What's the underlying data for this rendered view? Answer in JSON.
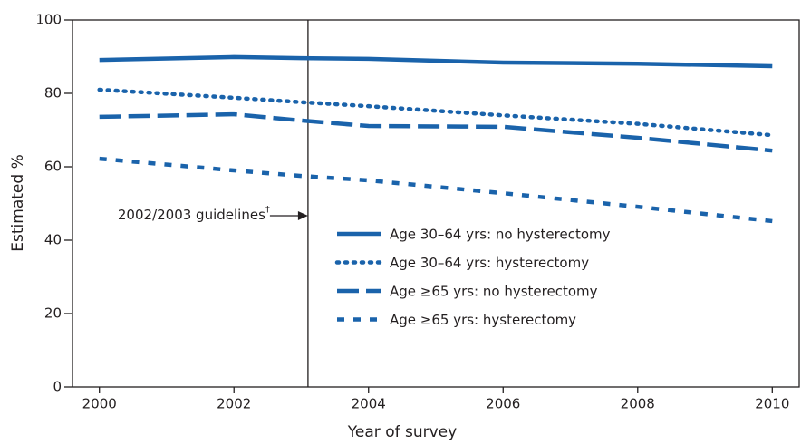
{
  "chart_data": {
    "type": "line",
    "x_label": "Year of survey",
    "y_label": "Estimated %",
    "x": [
      2000,
      2002,
      2003,
      2004,
      2006,
      2008,
      2010
    ],
    "series": [
      {
        "name": "Age 30–64 yrs: no hysterectomy",
        "color": "#1a63ab",
        "style": "solid",
        "values": [
          89.1,
          89.9,
          89.6,
          89.4,
          88.4,
          88.1,
          87.4
        ]
      },
      {
        "name": "Age 30–64 yrs: hysterectomy",
        "color": "#1a63ab",
        "style": "dotted",
        "values": [
          81.0,
          78.8,
          77.6,
          76.5,
          74.0,
          71.7,
          68.6
        ]
      },
      {
        "name": "Age ≥65 yrs: no hysterectomy",
        "color": "#1a63ab",
        "style": "dashed",
        "values": [
          73.6,
          74.3,
          72.6,
          71.1,
          70.9,
          67.9,
          64.4
        ]
      },
      {
        "name": "Age ≥65 yrs: hysterectomy",
        "color": "#1a63ab",
        "style": "short-dashed",
        "values": [
          62.2,
          59.0,
          57.5,
          56.3,
          52.8,
          49.1,
          45.2
        ]
      }
    ],
    "xlim": [
      1999.6,
      2010.4
    ],
    "ylim": [
      0,
      100
    ],
    "xticks": [
      2000,
      2002,
      2004,
      2006,
      2008,
      2010
    ],
    "yticks": [
      0,
      20,
      40,
      60,
      80,
      100
    ],
    "reference_line": {
      "x": 2003.1,
      "label": "2002/2003 guidelines",
      "mark": "†"
    }
  }
}
